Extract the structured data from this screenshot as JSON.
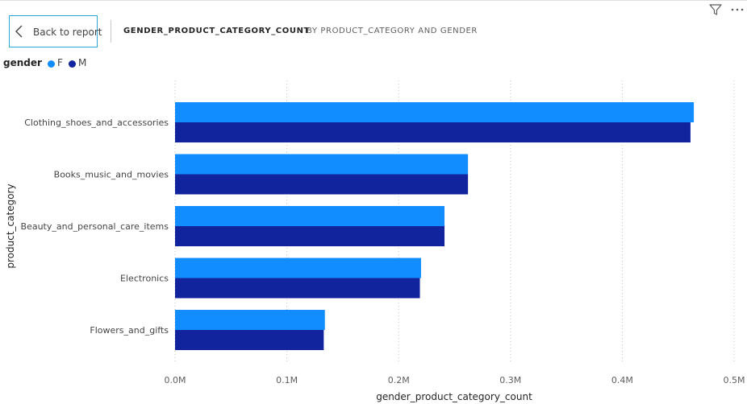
{
  "header": {
    "back_label": "Back to report",
    "title": "GENDER_PRODUCT_CATEGORY_COUNT",
    "subtitle": "BY PRODUCT_CATEGORY AND GENDER"
  },
  "legend": {
    "title": "gender",
    "items": [
      {
        "label": "F",
        "color": "#118dff"
      },
      {
        "label": "M",
        "color": "#12239e"
      }
    ]
  },
  "chart_data": {
    "type": "bar",
    "orientation": "horizontal",
    "title": "GENDER_PRODUCT_CATEGORY_COUNT",
    "subtitle": "BY PRODUCT_CATEGORY AND GENDER",
    "xlabel": "gender_product_category_count",
    "ylabel": "product_category",
    "categories": [
      "Clothing_shoes_and_accessories",
      "Books_music_and_movies",
      "Beauty_and_personal_care_items",
      "Electronics",
      "Flowers_and_gifts"
    ],
    "series": [
      {
        "name": "F",
        "color": "#118dff",
        "values": [
          464000,
          262000,
          241000,
          220000,
          134000
        ]
      },
      {
        "name": "M",
        "color": "#12239e",
        "values": [
          461000,
          262000,
          241000,
          219000,
          133000
        ]
      }
    ],
    "xlim": [
      0,
      500000
    ],
    "xticks": [
      {
        "value": 0,
        "label": "0.0M"
      },
      {
        "value": 100000,
        "label": "0.1M"
      },
      {
        "value": 200000,
        "label": "0.2M"
      },
      {
        "value": 300000,
        "label": "0.3M"
      },
      {
        "value": 400000,
        "label": "0.4M"
      },
      {
        "value": 500000,
        "label": "0.5M"
      }
    ],
    "grid": "vertical dotted",
    "legend_position": "top-left"
  }
}
